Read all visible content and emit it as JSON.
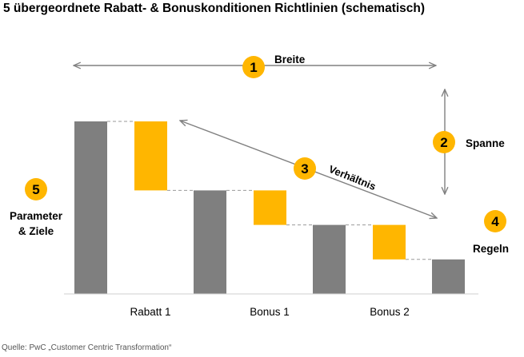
{
  "title": "5 übergeordnete Rabatt- & Bonuskonditionen Richtlinien (schematisch)",
  "source": "Quelle: PwC „Customer Centric Transformation“",
  "colors": {
    "gray_bar": "#7f7f7f",
    "yellow_bar": "#ffb600",
    "badge": "#ffb600",
    "arrow": "#808080",
    "dash": "#9a9a9a"
  },
  "badges": [
    {
      "number": "1",
      "label": "Breite"
    },
    {
      "number": "2",
      "label": "Spanne"
    },
    {
      "number": "3",
      "label": "Verhältnis"
    },
    {
      "number": "4",
      "label": "Regeln"
    },
    {
      "number": "5",
      "label": "Parameter\n& Ziele"
    }
  ],
  "chart_data": {
    "type": "waterfall",
    "categories": [
      "Rabatt 1",
      "Bonus 1",
      "Bonus 2"
    ],
    "x_labels": [
      "Rabatt 1",
      "Bonus 1",
      "Bonus 2"
    ],
    "bars": [
      {
        "kind": "total",
        "from": 0,
        "to": 100
      },
      {
        "kind": "reduction",
        "from": 100,
        "to": 60
      },
      {
        "kind": "total",
        "from": 0,
        "to": 60
      },
      {
        "kind": "reduction",
        "from": 60,
        "to": 40
      },
      {
        "kind": "total",
        "from": 0,
        "to": 40
      },
      {
        "kind": "reduction",
        "from": 40,
        "to": 20
      },
      {
        "kind": "total",
        "from": 0,
        "to": 20
      }
    ],
    "ylim": [
      0,
      100
    ],
    "axis_labels": false,
    "grid": false
  }
}
